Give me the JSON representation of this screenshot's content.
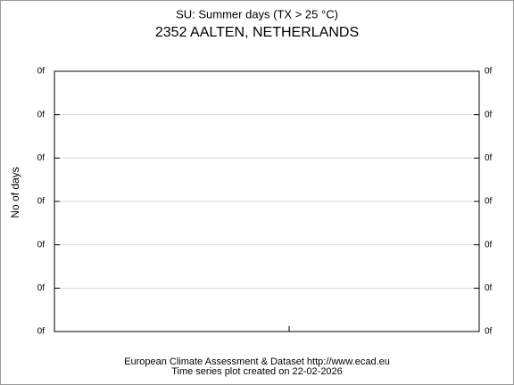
{
  "chart_data": {
    "type": "line",
    "title": "SU: Summer days (TX > 25 °C)",
    "subtitle": "2352 AALTEN, NETHERLANDS",
    "ylabel": "No of days",
    "footer": [
      "European Climate Assessment & Dataset  http://www.ecad.eu",
      "Time series plot created on 22-02-2026"
    ],
    "ylim": [
      0,
      6
    ],
    "yticks": [
      {
        "value": 0,
        "label": "0f"
      },
      {
        "value": 1,
        "label": "0f"
      },
      {
        "value": 2,
        "label": "0f"
      },
      {
        "value": 3,
        "label": "0f"
      },
      {
        "value": 4,
        "label": "0f"
      },
      {
        "value": 5,
        "label": "0f"
      },
      {
        "value": 6,
        "label": "0f"
      }
    ],
    "grid": true
  }
}
